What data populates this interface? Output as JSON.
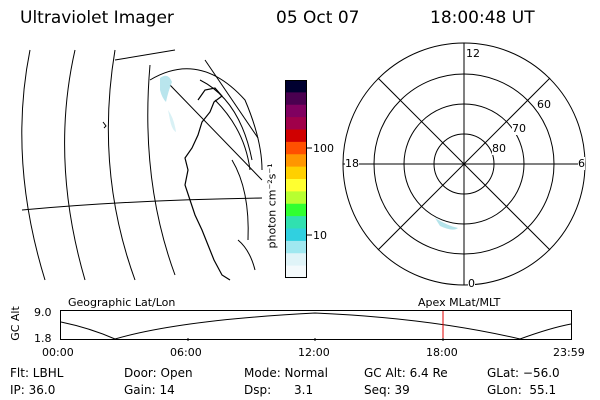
{
  "header": {
    "instrument": "Ultraviolet Imager",
    "date": "05 Oct 07",
    "time": "18:00:48 UT"
  },
  "colorbar": {
    "unit_label": "photon cm⁻²s⁻¹",
    "ticks": [
      "100",
      "10"
    ],
    "colors": [
      "#000030",
      "#4a0050",
      "#800060",
      "#a0004a",
      "#d00000",
      "#ff5000",
      "#ff9600",
      "#ffd000",
      "#ffff30",
      "#b8ff30",
      "#30ff30",
      "#30e0b0",
      "#30d0e0",
      "#a0e8f0",
      "#e0f4f8",
      "#f4fafc"
    ]
  },
  "polar_plot": {
    "mlt_labels": {
      "top": "12",
      "left": "18",
      "right": "6",
      "bottom": "0"
    },
    "lat_labels": [
      "60",
      "70",
      "80"
    ]
  },
  "timeline": {
    "ylabel": "GC Alt",
    "ymax": "9.0",
    "ymin": "1.8",
    "left_title": "Geographic Lat/Lon",
    "right_title": "Apex MLat/MLT",
    "xticks": [
      "00:00",
      "06:00",
      "12:00",
      "18:00",
      "23:59"
    ],
    "marker_color": "#e00000"
  },
  "status": {
    "flt": "Flt: LBHL",
    "door": "Door: Open",
    "mode": "Mode: Normal",
    "gcalt": "GC Alt: 6.4 Re",
    "glat": "GLat: −56.0",
    "ip": "IP: 36.0",
    "gain": "Gain: 14",
    "dsp": "Dsp:      3.1",
    "seq": "Seq: 39",
    "glon": "GLon:  55.1"
  }
}
